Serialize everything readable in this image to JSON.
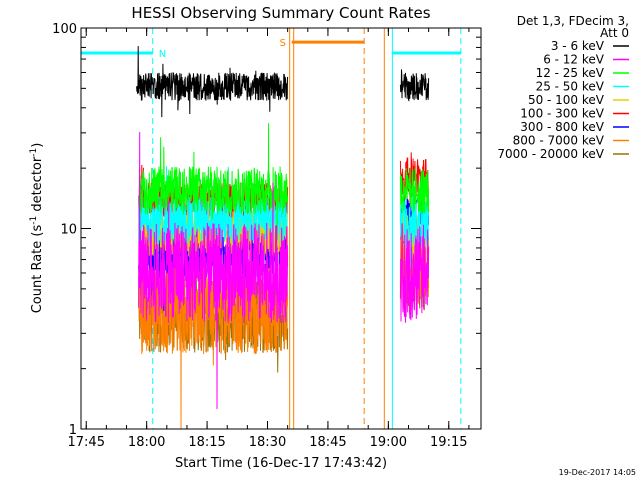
{
  "chart_data": {
    "type": "line",
    "title": "HESSI Observing Summary Count Rates",
    "xlabel": "Start Time (16-Dec-17 17:43:42)",
    "ylabel_main": "Count Rate (s",
    "ylabel_sup1": "-1",
    "ylabel_mid": " detector",
    "ylabel_sup2": "-1",
    "ylabel_end": ")",
    "date_stamp": "19-Dec-2017 14:05",
    "y_scale": "log",
    "ylim": [
      1,
      100
    ],
    "xlim": [
      "17:43:42",
      "19:23:00"
    ],
    "x_ticks": [
      "17:45",
      "18:00",
      "18:15",
      "18:30",
      "18:45",
      "19:00",
      "19:15"
    ],
    "y_ticks": [
      "1",
      "10",
      "100"
    ],
    "legend_placement": "right",
    "legend": {
      "header_line1": "Det 1,3, FDecim 3,",
      "header_line2": "Att 0",
      "entries": [
        {
          "label": "3 - 6 keV",
          "color": "#000000"
        },
        {
          "label": "6 - 12 keV",
          "color": "#ff00ff"
        },
        {
          "label": "12 - 25 keV",
          "color": "#00ff00"
        },
        {
          "label": "25 - 50 keV",
          "color": "#00ffff"
        },
        {
          "label": "50 - 100 keV",
          "color": "#e8d000"
        },
        {
          "label": "100 - 300 keV",
          "color": "#ff0000"
        },
        {
          "label": "300 - 800 keV",
          "color": "#0000ff"
        },
        {
          "label": "800 - 7000 keV",
          "color": "#ff8000"
        },
        {
          "label": "7000 - 20000 keV",
          "color": "#a07000"
        }
      ]
    },
    "series": [
      {
        "name": "3 - 6 keV",
        "color": "#000000",
        "segments": [
          {
            "start": "17:57:30",
            "end": "18:35:00",
            "level": 51,
            "spread": 0.07
          },
          {
            "start": "19:03:00",
            "end": "19:10:00",
            "level": 51,
            "spread": 0.07
          }
        ]
      },
      {
        "name": "6 - 12 keV",
        "color": "#ff00ff",
        "segments": [
          {
            "start": "17:58:00",
            "end": "18:35:00",
            "level": 6.0,
            "spread": 0.25
          },
          {
            "start": "19:03:00",
            "end": "19:10:00",
            "level": 6.0,
            "spread": 0.25
          }
        ]
      },
      {
        "name": "12 - 25 keV",
        "color": "#00ff00",
        "segments": [
          {
            "start": "17:58:00",
            "end": "18:35:00",
            "level": 15.5,
            "spread": 0.12
          },
          {
            "start": "19:03:00",
            "end": "19:10:00",
            "level": 15.5,
            "spread": 0.12
          }
        ]
      },
      {
        "name": "25 - 50 keV",
        "color": "#00ffff",
        "segments": [
          {
            "start": "17:58:00",
            "end": "18:35:00",
            "level": 11.0,
            "spread": 0.12
          },
          {
            "start": "19:03:00",
            "end": "19:10:00",
            "level": 10.5,
            "spread": 0.12
          }
        ]
      },
      {
        "name": "50 - 100 keV",
        "color": "#e8d000",
        "segments": [
          {
            "start": "17:58:00",
            "end": "18:35:00",
            "level": 9.5,
            "spread": 0.12
          },
          {
            "start": "19:03:00",
            "end": "19:10:00",
            "level": 9.0,
            "spread": 0.12
          }
        ]
      },
      {
        "name": "100 - 300 keV",
        "color": "#ff0000",
        "segments": [
          {
            "start": "17:58:00",
            "end": "18:35:00",
            "level": 13.5,
            "spread": 0.1
          },
          {
            "start": "19:03:00",
            "end": "19:10:00",
            "level": 18.0,
            "spread": 0.1
          }
        ]
      },
      {
        "name": "300 - 800 keV",
        "color": "#0000ff",
        "segments": [
          {
            "start": "17:58:00",
            "end": "18:35:00",
            "level": 7.5,
            "spread": 0.12
          },
          {
            "start": "19:03:00",
            "end": "19:10:00",
            "level": 11.0,
            "spread": 0.12
          }
        ]
      },
      {
        "name": "800 - 7000 keV",
        "color": "#ff8000",
        "segments": [
          {
            "start": "17:58:00",
            "end": "18:35:00",
            "level": 4.2,
            "spread": 0.25
          },
          {
            "start": "19:03:00",
            "end": "19:10:00",
            "level": 6.5,
            "spread": 0.2
          }
        ]
      },
      {
        "name": "7000 - 20000 keV",
        "color": "#a07000",
        "segments": [
          {
            "start": "17:58:00",
            "end": "18:35:00",
            "level": 3.8,
            "spread": 0.2
          },
          {
            "start": "19:03:00",
            "end": "19:10:00",
            "level": 5.5,
            "spread": 0.15
          }
        ]
      }
    ],
    "flags": [
      {
        "label": "N",
        "color": "#00ffff",
        "bar_y": 75,
        "bars": [
          [
            "17:43:42",
            "18:01:30"
          ],
          [
            "19:01:00",
            "19:18:00"
          ]
        ]
      },
      {
        "label": "S",
        "color": "#ff8000",
        "bar_y": 85,
        "bars": [
          [
            "18:36:00",
            "18:54:00"
          ]
        ]
      }
    ],
    "vlines": [
      {
        "time": "17:43:42",
        "color": "#00ffff",
        "style": "solid"
      },
      {
        "time": "18:01:30",
        "color": "#00ffff",
        "style": "dashed"
      },
      {
        "time": "19:01:00",
        "color": "#00ffff",
        "style": "solid"
      },
      {
        "time": "19:18:00",
        "color": "#00ffff",
        "style": "dashed"
      },
      {
        "time": "18:35:30",
        "color": "#ff8000",
        "style": "solid"
      },
      {
        "time": "18:36:30",
        "color": "#ff8000",
        "style": "solid"
      },
      {
        "time": "18:54:00",
        "color": "#ff8000",
        "style": "dashed"
      },
      {
        "time": "18:59:00",
        "color": "#ff8000",
        "style": "solid"
      }
    ]
  }
}
